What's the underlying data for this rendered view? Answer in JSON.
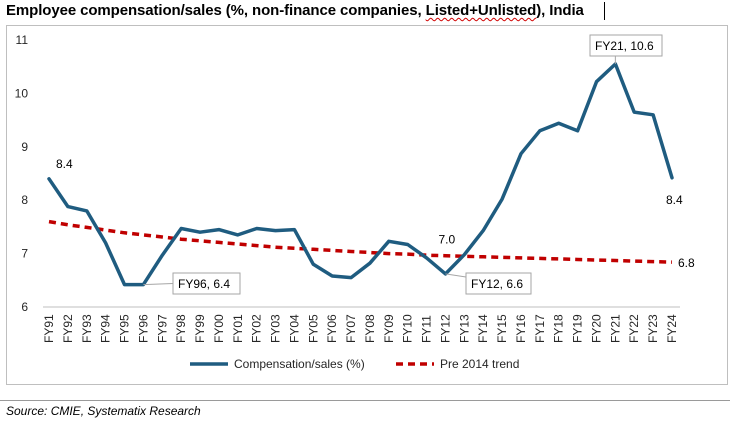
{
  "title_text": {
    "before": "Employee compensation/sales (%, non-finance companies, ",
    "wavy": "Listed+Unlisted",
    "after": "), India"
  },
  "source": "Source: CMIE, Systematix Research",
  "colors": {
    "compensation_line": "#1f5c80",
    "trend_line": "#c00000",
    "axis": "#bfbfbf",
    "callout_border": "#a6a6a6"
  },
  "chart_data": {
    "type": "line",
    "title": "Employee compensation/sales (%, non-finance companies, Listed+Unlisted), India",
    "categories": [
      "FY91",
      "FY92",
      "FY93",
      "FY94",
      "FY95",
      "FY96",
      "FY97",
      "FY98",
      "FY99",
      "FY00",
      "FY01",
      "FY02",
      "FY03",
      "FY04",
      "FY05",
      "FY06",
      "FY07",
      "FY08",
      "FY09",
      "FY10",
      "FY11",
      "FY12",
      "FY13",
      "FY14",
      "FY15",
      "FY16",
      "FY17",
      "FY18",
      "FY19",
      "FY20",
      "FY21",
      "FY22",
      "FY23",
      "FY24"
    ],
    "ylim": [
      6,
      11
    ],
    "yticks": [
      6,
      7,
      8,
      9,
      10,
      11
    ],
    "grid": false,
    "legend_position": "bottom",
    "series": [
      {
        "name": "Compensation/sales (%)",
        "style": "solid",
        "values": [
          8.4,
          7.88,
          7.8,
          7.2,
          6.42,
          6.42,
          6.97,
          7.47,
          7.4,
          7.45,
          7.35,
          7.47,
          7.43,
          7.45,
          6.8,
          6.58,
          6.55,
          6.82,
          7.23,
          7.17,
          6.92,
          6.62,
          6.98,
          7.43,
          8.02,
          8.87,
          9.3,
          9.44,
          9.3,
          10.22,
          10.55,
          9.65,
          9.6,
          8.42
        ]
      },
      {
        "name": "Pre 2014 trend",
        "style": "dashed",
        "values": [
          7.6,
          7.54,
          7.49,
          7.44,
          7.39,
          7.35,
          7.31,
          7.27,
          7.24,
          7.21,
          7.18,
          7.15,
          7.12,
          7.1,
          7.08,
          7.06,
          7.04,
          7.02,
          7.0,
          6.99,
          6.97,
          6.96,
          6.95,
          6.94,
          6.93,
          6.92,
          6.91,
          6.9,
          6.89,
          6.88,
          6.87,
          6.86,
          6.85,
          6.84
        ]
      }
    ],
    "annotations": [
      {
        "text": "8.4",
        "category": "FY91",
        "boxed": false
      },
      {
        "text": "FY96, 6.4",
        "category": "FY96",
        "boxed": true
      },
      {
        "text": "7.0",
        "category": "FY12",
        "boxed": false
      },
      {
        "text": "FY12, 6.6",
        "category": "FY12",
        "boxed": true
      },
      {
        "text": "FY21, 10.6",
        "category": "FY21",
        "boxed": true
      },
      {
        "text": "8.4",
        "category": "FY24",
        "boxed": false
      },
      {
        "text": "6.8",
        "category": "FY24",
        "boxed": false
      }
    ]
  }
}
